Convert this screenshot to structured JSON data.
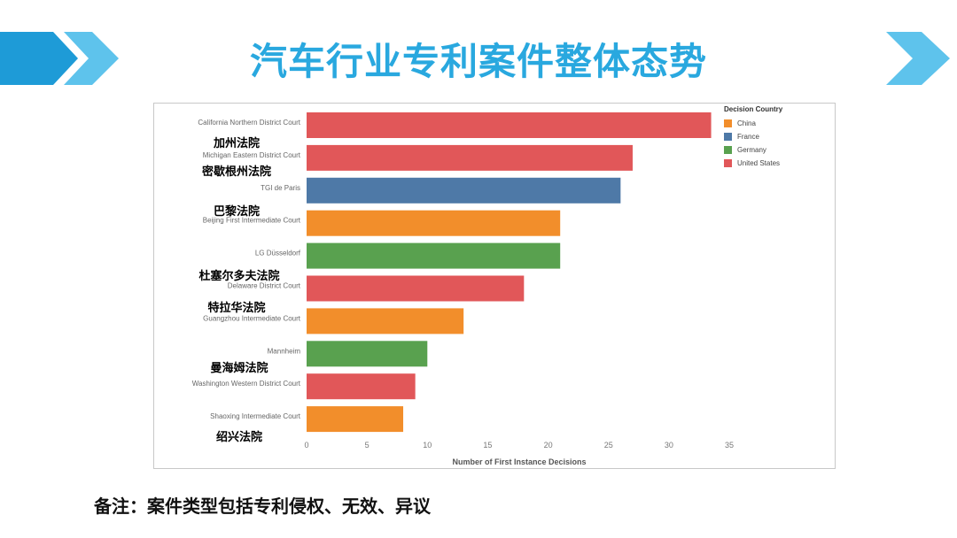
{
  "header": {
    "title": "汽车行业专利案件整体态势",
    "title_color": "#29a8df",
    "accent_color": "#1e9bd7"
  },
  "chart_data": {
    "type": "bar",
    "orientation": "horizontal",
    "categories": [
      "California Northern District Court",
      "Michigan Eastern District Court",
      "TGI de Paris",
      "Beijing First Intermediate Court",
      "LG Düsseldorf",
      "Delaware District Court",
      "Guangzhou Intermediate Court",
      "Mannheim",
      "Washington Western District Court",
      "Shaoxing Intermediate Court"
    ],
    "cn_labels": [
      "加州法院",
      "密歇根州法院",
      "巴黎法院",
      "杜塞尔多夫法院",
      "特拉华法院",
      "曼海姆法院",
      "绍兴法院"
    ],
    "values": [
      33.5,
      27,
      26,
      21,
      21,
      18,
      13,
      10,
      9,
      8
    ],
    "countries": [
      "United States",
      "United States",
      "France",
      "China",
      "Germany",
      "United States",
      "China",
      "Germany",
      "United States",
      "China"
    ],
    "xlabel": "Number of First Instance Decisions",
    "xlim": [
      0,
      35
    ],
    "xticks": [
      "0",
      "5",
      "10",
      "15",
      "20",
      "25",
      "30",
      "35"
    ],
    "legend": {
      "title": "Decision Country",
      "placement": "top-right",
      "items": [
        {
          "name": "China",
          "color": "#f28e2b"
        },
        {
          "name": "France",
          "color": "#4e79a7"
        },
        {
          "name": "Germany",
          "color": "#59a14f"
        },
        {
          "name": "United States",
          "color": "#e15759"
        }
      ]
    },
    "grid": false
  },
  "footer": {
    "note": "备注：案件类型包括专利侵权、无效、异议"
  }
}
